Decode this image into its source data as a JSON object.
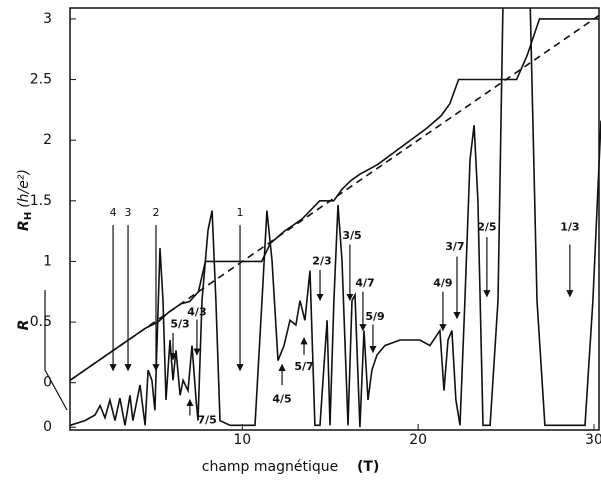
{
  "chart_data": {
    "type": "line",
    "xlabel": "champ magnétique",
    "xlabel_unit": "(T)",
    "ylabel": {
      "symbol": "R",
      "sub": "H",
      "unit": "(h/e²)"
    },
    "y2label": "R",
    "xlim": [
      0.2,
      30.4
    ],
    "xticks": [
      10,
      20,
      30
    ],
    "ylim": [
      -0.39,
      3.09
    ],
    "yticks": [
      0,
      0.5,
      1,
      1.5,
      2,
      2.5,
      3
    ],
    "y2lim": [
      -0.03,
      4.47
    ],
    "y2ticks": [
      0
    ],
    "series": [
      {
        "color": "#111111",
        "dashed": false,
        "x": [
          0.2,
          3,
          4.5,
          5.2,
          5.8,
          6.5,
          7.0,
          7.5,
          7.9,
          11.1,
          11.6,
          12.4,
          13.4,
          14.4,
          15.2,
          15.7,
          16.2,
          16.7,
          17.2,
          17.7,
          20.5,
          21.3,
          21.8,
          22.3,
          25.6,
          26.2,
          26.9,
          30.3
        ],
        "values": [
          0.02,
          0.3,
          0.45,
          0.5,
          0.58,
          0.65,
          0.67,
          0.75,
          1.0,
          1.0,
          1.15,
          1.25,
          1.35,
          1.5,
          1.5,
          1.6,
          1.67,
          1.72,
          1.76,
          1.8,
          2.1,
          2.2,
          2.3,
          2.5,
          2.5,
          2.7,
          3.0,
          3.0
        ]
      },
      {
        "color": "#111111",
        "dashed": true,
        "x": [
          0.2,
          30.3
        ],
        "values": [
          0.02,
          3.03
        ]
      },
      {
        "color": "#111111",
        "dashed": false,
        "axis": "y2",
        "x": [
          0.2,
          1.05,
          1.62,
          1.91,
          2.19,
          2.47,
          2.76,
          3.04,
          3.33,
          3.61,
          3.78,
          4.18,
          4.47,
          4.64,
          4.86,
          5.03,
          5.32,
          5.49,
          5.66,
          5.89,
          6.06,
          6.23,
          6.46,
          6.63,
          6.91,
          7.14,
          7.37,
          7.48,
          7.71,
          8.05,
          8.28,
          8.5,
          8.73,
          9.3,
          10.72,
          11.12,
          11.4,
          11.69,
          12.03,
          12.37,
          12.71,
          13.05,
          13.28,
          13.56,
          13.85,
          14.13,
          14.42,
          14.59,
          14.82,
          14.99,
          15.21,
          15.44,
          15.67,
          16.01,
          16.24,
          16.41,
          16.69,
          16.92,
          17.15,
          17.37,
          17.66,
          18.11,
          18.97,
          20.1,
          20.67,
          21.24,
          21.47,
          21.7,
          21.92,
          22.15,
          22.38,
          22.66,
          22.95,
          23.18,
          23.4,
          23.69,
          24.09,
          24.54,
          24.83,
          26.36,
          26.76,
          27.21,
          29.49,
          29.94,
          30.4
        ],
        "values": [
          0.02,
          0.07,
          0.13,
          0.23,
          0.1,
          0.29,
          0.07,
          0.31,
          0.02,
          0.34,
          0.07,
          0.45,
          0.02,
          0.61,
          0.5,
          0.18,
          1.91,
          1.35,
          0.29,
          0.93,
          0.5,
          0.82,
          0.34,
          0.5,
          0.39,
          0.87,
          0.29,
          0.07,
          1.35,
          2.1,
          2.31,
          1.35,
          0.07,
          0.02,
          0.02,
          1.35,
          2.31,
          1.78,
          0.71,
          0.87,
          1.14,
          1.09,
          1.35,
          1.14,
          1.67,
          0.02,
          0.02,
          0.5,
          1.14,
          0.02,
          1.35,
          2.37,
          1.78,
          0.02,
          1.35,
          1.41,
          0,
          1.03,
          0.29,
          0.61,
          0.77,
          0.87,
          0.93,
          0.93,
          0.87,
          1.03,
          0.39,
          0.93,
          1.03,
          0.29,
          0.02,
          1.35,
          2.85,
          3.22,
          2.42,
          0.02,
          0.02,
          1.35,
          4.6,
          4.6,
          1.35,
          0.02,
          0.02,
          1.35,
          3.27
        ]
      }
    ],
    "annotations": [
      {
        "text": "4",
        "x": 2.65,
        "y": 1.4,
        "arrow_x": 2.65,
        "arrow_from": 1.3,
        "arrow_to": 0.1
      },
      {
        "text": "3",
        "x": 3.5,
        "y": 1.4,
        "arrow_x": 3.5,
        "arrow_from": 1.3,
        "arrow_to": 0.1
      },
      {
        "text": "2",
        "x": 5.09,
        "y": 1.4,
        "arrow_x": 5.09,
        "arrow_from": 1.3,
        "arrow_to": 0.1
      },
      {
        "text": "1",
        "x": 9.87,
        "y": 1.4,
        "arrow_x": 9.87,
        "arrow_from": 1.3,
        "arrow_to": 0.1
      },
      {
        "text": "5/3",
        "x": 6.46,
        "y": 0.48,
        "arrow_x": 6.06,
        "arrow_from": 0.41,
        "arrow_to": 0.19
      },
      {
        "text": "4/3",
        "x": 7.42,
        "y": 0.58,
        "arrow_x": 7.42,
        "arrow_from": 0.52,
        "arrow_to": 0.23
      },
      {
        "text": "7/5",
        "x": 8.0,
        "y": -0.31,
        "arrow_x": 7.02,
        "arrow_from": -0.27,
        "arrow_to": -0.14
      },
      {
        "text": "4/5",
        "x": 12.26,
        "y": -0.14,
        "arrow_x": 12.26,
        "arrow_from": -0.02,
        "arrow_to": 0.15
      },
      {
        "text": "5/7",
        "x": 13.51,
        "y": 0.13,
        "arrow_x": 13.51,
        "arrow_from": 0.23,
        "arrow_to": 0.37
      },
      {
        "text": "2/3",
        "x": 14.53,
        "y": 1.0,
        "arrow_x": 14.42,
        "arrow_from": 0.93,
        "arrow_to": 0.68
      },
      {
        "text": "3/5",
        "x": 16.24,
        "y": 1.21,
        "arrow_x": 16.12,
        "arrow_from": 1.14,
        "arrow_to": 0.68
      },
      {
        "text": "4/7",
        "x": 16.98,
        "y": 0.82,
        "arrow_x": 16.86,
        "arrow_from": 0.75,
        "arrow_to": 0.43
      },
      {
        "text": "5/9",
        "x": 17.55,
        "y": 0.54,
        "arrow_x": 17.43,
        "arrow_from": 0.48,
        "arrow_to": 0.25
      },
      {
        "text": "4/9",
        "x": 21.41,
        "y": 0.82,
        "arrow_x": 21.41,
        "arrow_from": 0.75,
        "arrow_to": 0.43
      },
      {
        "text": "3/7",
        "x": 22.09,
        "y": 1.12,
        "arrow_x": 22.21,
        "arrow_from": 1.04,
        "arrow_to": 0.53
      },
      {
        "text": "2/5",
        "x": 23.91,
        "y": 1.28,
        "arrow_x": 23.91,
        "arrow_from": 1.2,
        "arrow_to": 0.71
      },
      {
        "text": "1/3",
        "x": 28.63,
        "y": 1.28,
        "arrow_x": 28.63,
        "arrow_from": 1.14,
        "arrow_to": 0.71
      }
    ]
  }
}
